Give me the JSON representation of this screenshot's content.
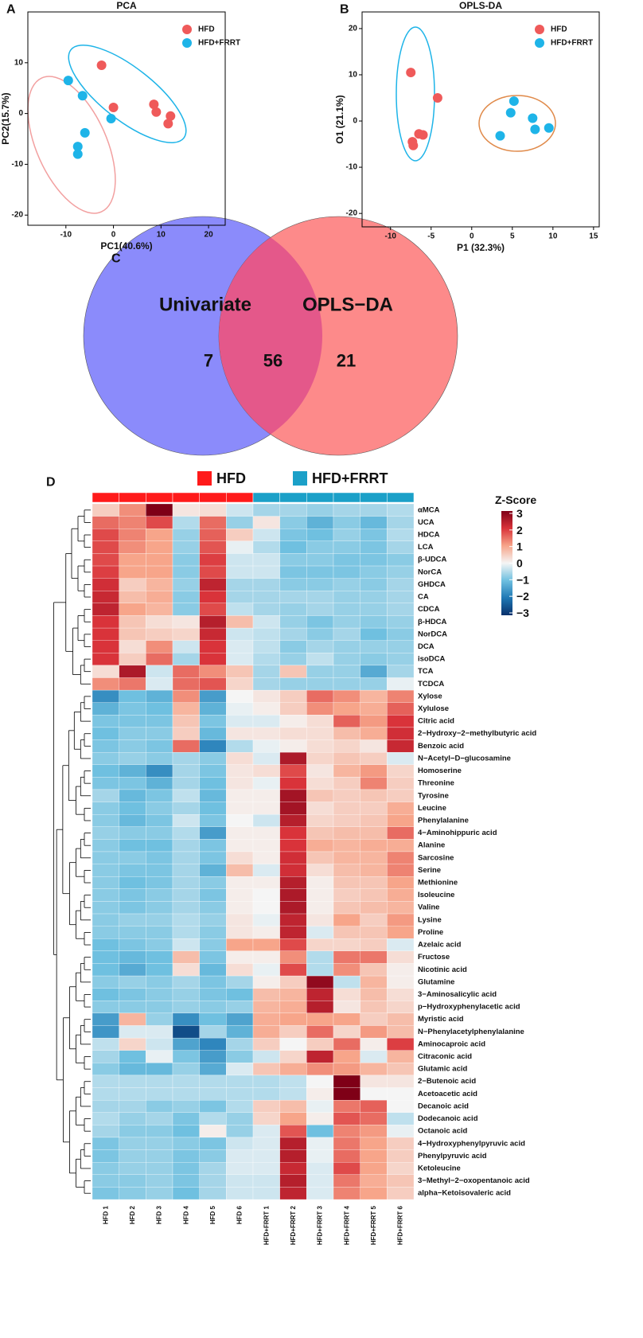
{
  "chart_data": [
    {
      "type": "scatter",
      "panel": "A",
      "title": "PCA",
      "x_label": "PC1(40.6%)",
      "y_label": "PC2(15.7%)",
      "xlim": [
        -18,
        23.5
      ],
      "xticks": [
        -10,
        0,
        10,
        20
      ],
      "ylim": [
        -22,
        20
      ],
      "yticks": [
        -20,
        -10,
        0,
        10
      ],
      "series": [
        {
          "name": "HFD",
          "color": "#ef5a5a",
          "x": [
            -2.5,
            0,
            8.5,
            9,
            11.5,
            12
          ],
          "values": [
            9.5,
            1.2,
            1.8,
            0.3,
            -2,
            -0.5
          ]
        },
        {
          "name": "HFD+FRRT",
          "color": "#1eb4e8",
          "x": [
            -9.5,
            -6.5,
            -6,
            -7.5,
            -7.5,
            -0.5
          ],
          "values": [
            6.5,
            3.5,
            -3.8,
            -6.5,
            -8,
            -1
          ]
        }
      ]
    },
    {
      "type": "scatter",
      "panel": "B",
      "title": "OPLS-DA",
      "x_label": "P1 (32.3%)",
      "y_label": "O1 (21.1%)",
      "xlim": [
        -13.5,
        15.7
      ],
      "xticks": [
        -10,
        -5,
        0,
        5,
        10,
        15
      ],
      "ylim": [
        -22.9,
        23.6
      ],
      "yticks": [
        -20,
        -10,
        0,
        10,
        20
      ],
      "series": [
        {
          "name": "HFD",
          "color": "#ef5a5a",
          "x": [
            -7.5,
            -4.2,
            -6.5,
            -6,
            -7.3,
            -7.2
          ],
          "values": [
            10.5,
            5,
            -2.8,
            -3,
            -4.5,
            -5.3
          ]
        },
        {
          "name": "HFD+FRRT",
          "color": "#1eb4e8",
          "x": [
            3.5,
            4.8,
            5.2,
            7.5,
            7.8,
            9.5
          ],
          "values": [
            -3.2,
            1.8,
            4.3,
            0.6,
            -1.8,
            -1.5
          ]
        }
      ]
    },
    {
      "type": "venn",
      "panel": "C",
      "sets": [
        "Univariate",
        "OPLS−DA"
      ],
      "colors": [
        "#8b8bfb",
        "#fd8a8a",
        "#e4588a"
      ],
      "values": [
        7,
        56,
        21
      ]
    },
    {
      "type": "heatmap",
      "panel": "D",
      "groups": [
        {
          "name": "HFD",
          "color": "#ff1a1a"
        },
        {
          "name": "HFD+FRRT",
          "color": "#1ba0c8"
        }
      ],
      "columns": [
        "HFD 1",
        "HFD 2",
        "HFD 3",
        "HFD 4",
        "HFD 5",
        "HFD 6",
        "HFD+FRRT 1",
        "HFD+FRRT 2",
        "HFD+FRRT 3",
        "HFD+FRRT 4",
        "HFD+FRRT 5",
        "HFD+FRRT 6"
      ],
      "column_groups": [
        "HFD",
        "HFD",
        "HFD",
        "HFD",
        "HFD",
        "HFD",
        "HFD+FRRT",
        "HFD+FRRT",
        "HFD+FRRT",
        "HFD+FRRT",
        "HFD+FRRT",
        "HFD+FRRT"
      ],
      "rows": [
        "αMCA",
        "UCA",
        "HDCA",
        "LCA",
        "β-UDCA",
        "NorCA",
        "GHDCA",
        "CA",
        "CDCA",
        "β-HDCA",
        "NorDCA",
        "DCA",
        "isoDCA",
        "TCA",
        "TCDCA",
        "Xylose",
        "Xylulose",
        "Citric acid",
        "2−Hydroxy−2−methylbutyric acid",
        "Benzoic acid",
        "N−Acetyl−D−glucosamine",
        "Homoserine",
        "Threonine",
        "Tyrosine",
        "Leucine",
        "Phenylalanine",
        "4−Aminohippuric acid",
        "Alanine",
        "Sarcosine",
        "Serine",
        "Methionine",
        "Isoleucine",
        "Valine",
        "Lysine",
        "Proline",
        "Azelaic acid",
        "Fructose",
        "Nicotinic acid",
        "Glutamine",
        "3−Aminosalicylic acid",
        "p−Hydroxyphenylacetic acid",
        "Myristic acid",
        "N−Phenylacetylphenylalanine",
        "Aminocaproic acid",
        "Citraconic acid",
        "Glutamic acid",
        "2−Butenoic acid",
        "Acetoacetic acid",
        "Decanoic acid",
        "Dodecanoic acid",
        "Octanoic acid",
        "4−Hydroxyphenylpyruvic acid",
        "Phenylpyruvic acid",
        "Ketoleucine",
        "3−Methyl−2−oxopentanoic acid",
        "alpha−Ketoisovaleric acid"
      ],
      "values": [
        [
          0.5,
          1.2,
          3,
          0.2,
          0.3,
          -0.3,
          -0.6,
          -0.6,
          -0.7,
          -0.6,
          -0.6,
          -0.5
        ],
        [
          1.5,
          1.3,
          1.8,
          -0.5,
          1.5,
          -0.7,
          0.2,
          -0.8,
          -1.2,
          -0.8,
          -1.1,
          -0.6
        ],
        [
          1.8,
          1.3,
          1.0,
          -0.7,
          1.6,
          0.5,
          -0.3,
          -0.9,
          -1.0,
          -0.7,
          -0.9,
          -0.5
        ],
        [
          1.8,
          1.2,
          1.0,
          -0.7,
          1.7,
          -0.1,
          -0.5,
          -1.0,
          -0.8,
          -0.8,
          -0.9,
          -0.6
        ],
        [
          1.8,
          1.0,
          1.0,
          -0.8,
          1.9,
          -0.3,
          -0.3,
          -0.8,
          -0.8,
          -0.9,
          -0.9,
          -0.8
        ],
        [
          1.9,
          1.0,
          1.0,
          -0.8,
          1.8,
          -0.3,
          -0.3,
          -0.9,
          -0.9,
          -0.9,
          -0.8,
          -0.7
        ],
        [
          2.1,
          0.5,
          0.8,
          -0.7,
          2.3,
          -0.6,
          -0.6,
          -0.8,
          -0.8,
          -0.7,
          -0.8,
          -0.6
        ],
        [
          2.2,
          0.7,
          0.9,
          -0.8,
          2.0,
          -0.6,
          -0.6,
          -0.6,
          -0.6,
          -0.7,
          -0.7,
          -0.6
        ],
        [
          2.3,
          1.0,
          0.8,
          -0.8,
          1.8,
          -0.4,
          -0.6,
          -0.7,
          -0.6,
          -0.7,
          -0.7,
          -0.6
        ],
        [
          2.0,
          0.6,
          0.3,
          0.2,
          2.4,
          0.7,
          -0.3,
          -0.7,
          -0.9,
          -0.7,
          -0.8,
          -0.7
        ],
        [
          2.0,
          0.6,
          0.5,
          0.4,
          2.2,
          -0.3,
          -0.4,
          -0.6,
          -0.8,
          -0.6,
          -1.0,
          -0.8
        ],
        [
          2.0,
          0.3,
          1.2,
          -0.3,
          2.0,
          -0.2,
          -0.4,
          -0.8,
          -0.6,
          -0.7,
          -0.7,
          -0.7
        ],
        [
          2.0,
          0.5,
          1.5,
          -0.6,
          2.0,
          -0.2,
          -0.5,
          -0.7,
          -0.4,
          -0.7,
          -0.8,
          -0.7
        ],
        [
          0.3,
          2.5,
          -0.3,
          1.5,
          1.2,
          0.6,
          -0.6,
          0.6,
          -0.7,
          -0.7,
          -1.3,
          -0.6
        ],
        [
          1.2,
          1.4,
          -0.2,
          1.5,
          1.7,
          0.4,
          -0.6,
          -0.7,
          -0.7,
          -0.7,
          -0.7,
          -0.1
        ],
        [
          -1.7,
          -1.0,
          -1.2,
          1.2,
          -1.5,
          0,
          0.2,
          0.5,
          1.5,
          1.2,
          0.8,
          1.3
        ],
        [
          -1.2,
          -0.9,
          -1.0,
          0.8,
          -1.2,
          -0.1,
          0.1,
          0.5,
          1.2,
          1.0,
          0.9,
          1.6
        ],
        [
          -0.9,
          -0.9,
          -0.9,
          0.6,
          -0.9,
          -0.2,
          -0.2,
          0.1,
          0.3,
          1.6,
          1.1,
          2.0
        ],
        [
          -1.0,
          -0.8,
          -0.8,
          0.5,
          -1.1,
          0.2,
          0.2,
          0.3,
          0.3,
          0.7,
          0.9,
          2.1
        ],
        [
          -0.9,
          -0.8,
          -0.9,
          1.5,
          -1.8,
          -0.5,
          -0.1,
          0.1,
          0.3,
          0.4,
          0.2,
          2.2
        ],
        [
          -0.8,
          -0.7,
          -0.8,
          -0.6,
          -0.8,
          0.3,
          -0.2,
          2.5,
          0.4,
          0.6,
          0.5,
          -0.2
        ],
        [
          -1.0,
          -1.2,
          -1.7,
          -0.6,
          -0.9,
          0.2,
          0.3,
          1.8,
          0.2,
          0.8,
          1.1,
          0.4
        ],
        [
          -0.9,
          -0.9,
          -1.2,
          -0.6,
          -1.0,
          0.2,
          -0.1,
          2.0,
          0.3,
          0.5,
          1.3,
          0.5
        ],
        [
          -0.6,
          -1.1,
          -0.9,
          -0.4,
          -1.1,
          0.1,
          0.1,
          2.6,
          0.6,
          0.5,
          0.6,
          0.5
        ],
        [
          -0.8,
          -1.0,
          -0.8,
          -0.6,
          -1.0,
          0.1,
          0.1,
          2.6,
          0.3,
          0.5,
          0.5,
          0.9
        ],
        [
          -0.8,
          -1.1,
          -0.9,
          -0.3,
          -0.9,
          0.0,
          -0.3,
          2.4,
          0.4,
          0.5,
          0.6,
          1.0
        ],
        [
          -0.7,
          -0.8,
          -0.8,
          -0.5,
          -1.5,
          0.1,
          0.1,
          2.0,
          0.6,
          0.7,
          0.7,
          1.5
        ],
        [
          -0.8,
          -1.0,
          -1.0,
          -0.6,
          -0.9,
          0.1,
          0.1,
          2.0,
          0.9,
          0.8,
          0.9,
          0.9
        ],
        [
          -0.8,
          -0.8,
          -0.9,
          -0.6,
          -0.9,
          0.3,
          0.1,
          2.1,
          0.6,
          0.8,
          0.8,
          1.3
        ],
        [
          -0.8,
          -0.9,
          -0.9,
          -0.6,
          -1.2,
          0.7,
          -0.2,
          2.1,
          0.3,
          0.7,
          0.8,
          1.3
        ],
        [
          -0.8,
          -1.0,
          -0.9,
          -0.6,
          -0.8,
          0.1,
          0.1,
          2.4,
          0.1,
          0.6,
          0.6,
          1.0
        ],
        [
          -0.8,
          -0.9,
          -0.8,
          -0.6,
          -0.9,
          0.1,
          0.0,
          2.5,
          0.1,
          0.5,
          0.6,
          0.9
        ],
        [
          -0.8,
          -0.9,
          -0.8,
          -0.6,
          -0.8,
          0.1,
          0.0,
          2.5,
          0.1,
          0.6,
          0.7,
          0.8
        ],
        [
          -0.8,
          -0.7,
          -0.7,
          -0.5,
          -0.7,
          0.2,
          -0.1,
          2.3,
          0.2,
          1.0,
          0.5,
          1.1
        ],
        [
          -0.8,
          -0.8,
          -0.8,
          -0.5,
          -0.8,
          0.2,
          0.1,
          2.3,
          -0.2,
          0.6,
          0.6,
          1.0
        ],
        [
          -1.0,
          -0.9,
          -0.8,
          -0.3,
          -0.8,
          1.0,
          1.0,
          1.8,
          0.4,
          0.4,
          0.5,
          -0.2
        ],
        [
          -1.0,
          -1.1,
          -1.0,
          0.7,
          -0.9,
          0.1,
          0.1,
          1.2,
          -0.5,
          1.4,
          1.4,
          0.3
        ],
        [
          -1.0,
          -1.3,
          -1.0,
          0.3,
          -1.1,
          0.3,
          -0.1,
          1.8,
          -0.5,
          1.2,
          0.6,
          0.1
        ],
        [
          -0.8,
          -0.7,
          -0.8,
          -0.6,
          -0.9,
          -0.6,
          0.1,
          0.5,
          2.8,
          -0.4,
          0.8,
          0.1
        ],
        [
          -1.0,
          -0.9,
          -0.8,
          -0.7,
          -0.9,
          -1.0,
          0.7,
          0.8,
          2.3,
          0.3,
          0.7,
          0.3
        ],
        [
          -0.8,
          -0.8,
          -0.8,
          -0.7,
          -0.8,
          -0.7,
          0.8,
          0.9,
          2.4,
          0.2,
          0.6,
          0.4
        ],
        [
          -1.5,
          0.8,
          -0.7,
          -1.7,
          -1.0,
          -1.4,
          0.9,
          1.0,
          1.0,
          1.0,
          0.5,
          0.7
        ],
        [
          -1.6,
          -0.2,
          -0.2,
          -2.6,
          -0.6,
          -1.2,
          0.9,
          0.5,
          1.5,
          0.4,
          1.1,
          0.7
        ],
        [
          -0.4,
          0.4,
          -0.3,
          -1.4,
          -1.8,
          -0.6,
          0.5,
          0.0,
          0.5,
          1.5,
          0.1,
          1.9
        ],
        [
          -0.6,
          -1.0,
          -0.1,
          -0.9,
          -1.5,
          -0.8,
          -0.3,
          0.4,
          2.3,
          1.0,
          -0.2,
          0.8
        ],
        [
          -0.8,
          -1.1,
          -1.1,
          -0.7,
          -1.3,
          -0.2,
          0.6,
          0.9,
          1.2,
          1.1,
          0.8,
          0.6
        ],
        [
          -0.5,
          -0.5,
          -0.5,
          -0.5,
          -0.5,
          -0.5,
          -0.5,
          -0.4,
          0.0,
          3.0,
          0.2,
          0.2
        ],
        [
          -0.5,
          -0.5,
          -0.5,
          -0.5,
          -0.5,
          -0.5,
          -0.5,
          -0.4,
          0.1,
          3.0,
          0.0,
          0.0
        ],
        [
          -0.6,
          -0.6,
          -0.8,
          -0.7,
          -0.9,
          -0.5,
          0.5,
          0.7,
          -0.1,
          1.4,
          1.6,
          0.0
        ],
        [
          -0.5,
          -0.7,
          -0.6,
          -0.9,
          -0.5,
          -0.7,
          0.4,
          1.0,
          0.1,
          1.7,
          1.5,
          -0.4
        ],
        [
          -0.6,
          -0.8,
          -0.8,
          -1.0,
          0.1,
          -0.7,
          -0.2,
          1.7,
          -1.0,
          1.3,
          1.1,
          -0.1
        ],
        [
          -0.9,
          -0.7,
          -0.7,
          -0.8,
          -0.9,
          -0.3,
          -0.2,
          2.4,
          -0.1,
          1.4,
          1.0,
          0.5
        ],
        [
          -0.9,
          -0.7,
          -0.7,
          -0.9,
          -0.8,
          -0.2,
          -0.2,
          2.4,
          -0.1,
          1.5,
          1.0,
          0.5
        ],
        [
          -0.8,
          -0.7,
          -0.7,
          -0.9,
          -0.6,
          -0.2,
          -0.2,
          2.2,
          -0.2,
          1.8,
          1.0,
          0.4
        ],
        [
          -0.8,
          -0.8,
          -0.7,
          -0.9,
          -0.6,
          -0.3,
          -0.3,
          2.4,
          -0.2,
          1.4,
          0.9,
          0.6
        ],
        [
          -0.9,
          -0.8,
          -0.7,
          -1.0,
          -0.6,
          -0.3,
          -0.3,
          2.3,
          -0.2,
          1.3,
          1.0,
          0.5
        ]
      ],
      "colorbar_title": "Z-Score",
      "zlim": [
        -3,
        3
      ],
      "zticks": [
        3,
        2,
        1,
        0,
        {
          "value": -1,
          "label": "−1"
        },
        {
          "value": -2,
          "label": "−2"
        },
        {
          "value": -3,
          "label": "−3"
        }
      ],
      "colorscale": [
        "#08306b",
        "#1f78b4",
        "#6fc0e0",
        "#f5f5f5",
        "#f7a58a",
        "#d9333a",
        "#7f0017"
      ]
    }
  ]
}
